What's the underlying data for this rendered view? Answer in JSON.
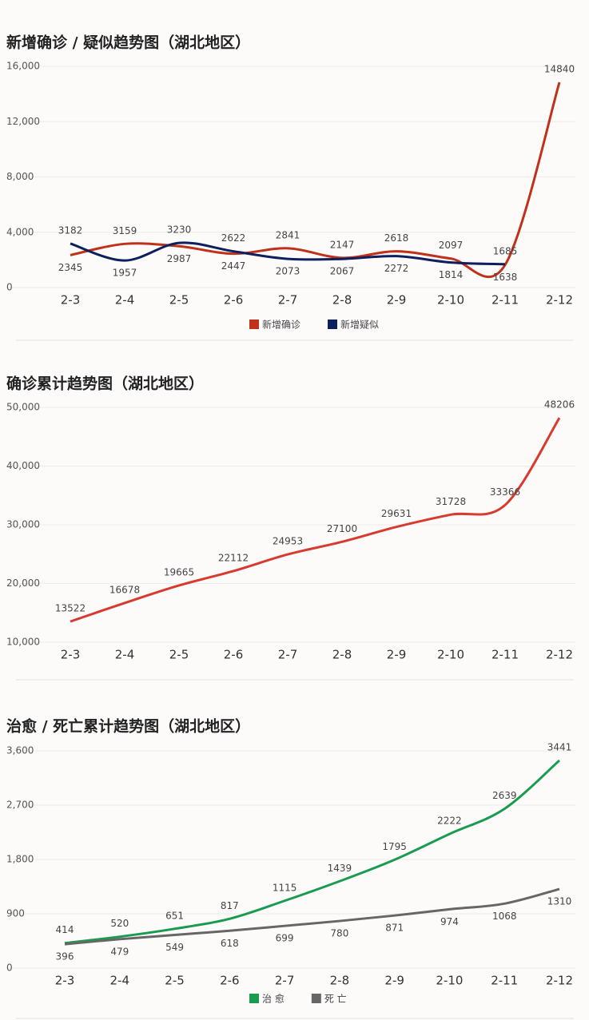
{
  "chart_data": [
    {
      "type": "line",
      "title": "新增确诊 / 疑似趋势图（湖北地区）",
      "categories": [
        "2-3",
        "2-4",
        "2-5",
        "2-6",
        "2-7",
        "2-8",
        "2-9",
        "2-10",
        "2-11",
        "2-12"
      ],
      "series": [
        {
          "name": "新增确诊",
          "color": "#c0311a",
          "values": [
            2345,
            3159,
            2987,
            2447,
            2841,
            2147,
            2618,
            2097,
            1638,
            14840
          ]
        },
        {
          "name": "新增疑似",
          "color": "#0d1f5c",
          "values": [
            3182,
            1957,
            3230,
            2622,
            2073,
            2067,
            2272,
            1814,
            1685,
            null
          ]
        }
      ],
      "ylim": [
        0,
        16000
      ],
      "yticks": [
        0,
        {
          "value": 4000,
          "label": "4,000"
        },
        {
          "value": 8000,
          "label": "8,000"
        },
        {
          "value": 12000,
          "label": "12,000"
        },
        {
          "value": 16000,
          "label": "16,000"
        }
      ],
      "grid": true,
      "legend": "bottom"
    },
    {
      "type": "line",
      "title": "确诊累计趋势图（湖北地区）",
      "categories": [
        "2-3",
        "2-4",
        "2-5",
        "2-6",
        "2-7",
        "2-8",
        "2-9",
        "2-10",
        "2-11",
        "2-12"
      ],
      "color": "#d93a2f",
      "values": [
        13522,
        16678,
        19665,
        22112,
        24953,
        27100,
        29631,
        31728,
        33366,
        48206
      ],
      "ylim": [
        10000,
        50000
      ],
      "yticks": [
        {
          "value": 10000,
          "label": "10,000"
        },
        {
          "value": 20000,
          "label": "20,000"
        },
        {
          "value": 30000,
          "label": "30,000"
        },
        {
          "value": 40000,
          "label": "40,000"
        },
        {
          "value": 50000,
          "label": "50,000"
        }
      ],
      "grid": true
    },
    {
      "type": "line",
      "title": "治愈 / 死亡累计趋势图（湖北地区）",
      "categories": [
        "2-3",
        "2-4",
        "2-5",
        "2-6",
        "2-7",
        "2-8",
        "2-9",
        "2-10",
        "2-11",
        "2-12"
      ],
      "series": [
        {
          "name": "治 愈",
          "color": "#1a9c50",
          "values": [
            414,
            520,
            651,
            817,
            1115,
            1439,
            1795,
            2222,
            2639,
            3441
          ]
        },
        {
          "name": "死 亡",
          "color": "#666666",
          "values": [
            396,
            479,
            549,
            618,
            699,
            780,
            871,
            974,
            1068,
            1310
          ]
        }
      ],
      "ylim": [
        0,
        3600
      ],
      "yticks": [
        0,
        900,
        {
          "value": 1800,
          "label": "1,800"
        },
        {
          "value": 2700,
          "label": "2,700"
        },
        {
          "value": 3600,
          "label": "3,600"
        }
      ],
      "grid": true,
      "legend": "bottom"
    }
  ]
}
